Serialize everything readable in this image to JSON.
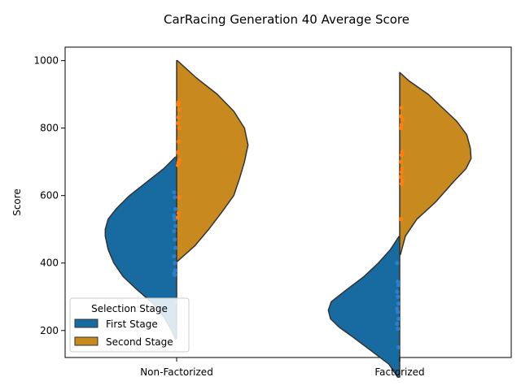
{
  "chart_data": {
    "type": "violin",
    "title": "CarRacing Generation 40 Average Score",
    "xlabel": "",
    "ylabel": "Score",
    "categories": [
      "Non-Factorized",
      "Factorized"
    ],
    "ylim": [
      120,
      1040
    ],
    "yticks": [
      200,
      400,
      600,
      800,
      1000
    ],
    "split": true,
    "legend": {
      "title": "Selection Stage",
      "placement": "lower-left",
      "entries": [
        "First Stage",
        "Second Stage"
      ]
    },
    "colors": {
      "First Stage": "#176ba0",
      "Second Stage": "#c88a1e",
      "First Stage points": "#2b7fd1",
      "Second Stage points": "#ff7f0e",
      "outline": "#333333"
    },
    "series": [
      {
        "name": "First Stage",
        "side": "left",
        "violins": [
          {
            "category": "Non-Factorized",
            "range": [
              176,
              714
            ],
            "profile": [
              [
                176,
                0.02
              ],
              [
                200,
                0.07
              ],
              [
                240,
                0.18
              ],
              [
                280,
                0.33
              ],
              [
                320,
                0.55
              ],
              [
                360,
                0.75
              ],
              [
                400,
                0.88
              ],
              [
                440,
                0.96
              ],
              [
                480,
                1.0
              ],
              [
                500,
                1.0
              ],
              [
                530,
                0.96
              ],
              [
                560,
                0.85
              ],
              [
                600,
                0.66
              ],
              [
                640,
                0.42
              ],
              [
                680,
                0.18
              ],
              [
                714,
                0.02
              ]
            ],
            "points": [
              286,
              365,
              370,
              378,
              400,
              420,
              445,
              470,
              495,
              510,
              530,
              540,
              560,
              595,
              610
            ]
          },
          {
            "category": "Factorized",
            "range": [
              62,
              479
            ],
            "profile": [
              [
                62,
                0.03
              ],
              [
                100,
                0.15
              ],
              [
                140,
                0.4
              ],
              [
                180,
                0.65
              ],
              [
                210,
                0.85
              ],
              [
                235,
                0.97
              ],
              [
                260,
                1.0
              ],
              [
                285,
                0.96
              ],
              [
                320,
                0.75
              ],
              [
                360,
                0.5
              ],
              [
                400,
                0.3
              ],
              [
                440,
                0.13
              ],
              [
                479,
                0.01
              ]
            ],
            "points": [
              150,
              205,
              220,
              235,
              255,
              265,
              280,
              300,
              315,
              335,
              345,
              400
            ]
          }
        ]
      },
      {
        "name": "Second Stage",
        "side": "right",
        "violins": [
          {
            "category": "Non-Factorized",
            "range": [
              405,
              1000
            ],
            "profile": [
              [
                405,
                0.01
              ],
              [
                450,
                0.25
              ],
              [
                500,
                0.45
              ],
              [
                550,
                0.63
              ],
              [
                600,
                0.8
              ],
              [
                650,
                0.88
              ],
              [
                700,
                0.95
              ],
              [
                750,
                1.0
              ],
              [
                800,
                0.95
              ],
              [
                850,
                0.8
              ],
              [
                900,
                0.57
              ],
              [
                950,
                0.27
              ],
              [
                1000,
                0.01
              ]
            ],
            "points": [
              535,
              548,
              595,
              690,
              698,
              705,
              728,
              760,
              800,
              815,
              832,
              855,
              870,
              877
            ]
          },
          {
            "category": "Factorized",
            "range": [
              425,
              965
            ],
            "profile": [
              [
                425,
                0.01
              ],
              [
                480,
                0.08
              ],
              [
                530,
                0.24
              ],
              [
                580,
                0.5
              ],
              [
                640,
                0.75
              ],
              [
                680,
                0.93
              ],
              [
                710,
                1.0
              ],
              [
                740,
                0.99
              ],
              [
                780,
                0.94
              ],
              [
                820,
                0.8
              ],
              [
                860,
                0.6
              ],
              [
                900,
                0.4
              ],
              [
                940,
                0.13
              ],
              [
                965,
                0.0
              ]
            ],
            "points": [
              530,
              635,
              645,
              655,
              670,
              680,
              700,
              720,
              730,
              800,
              810,
              825,
              835,
              860
            ]
          }
        ]
      }
    ]
  }
}
